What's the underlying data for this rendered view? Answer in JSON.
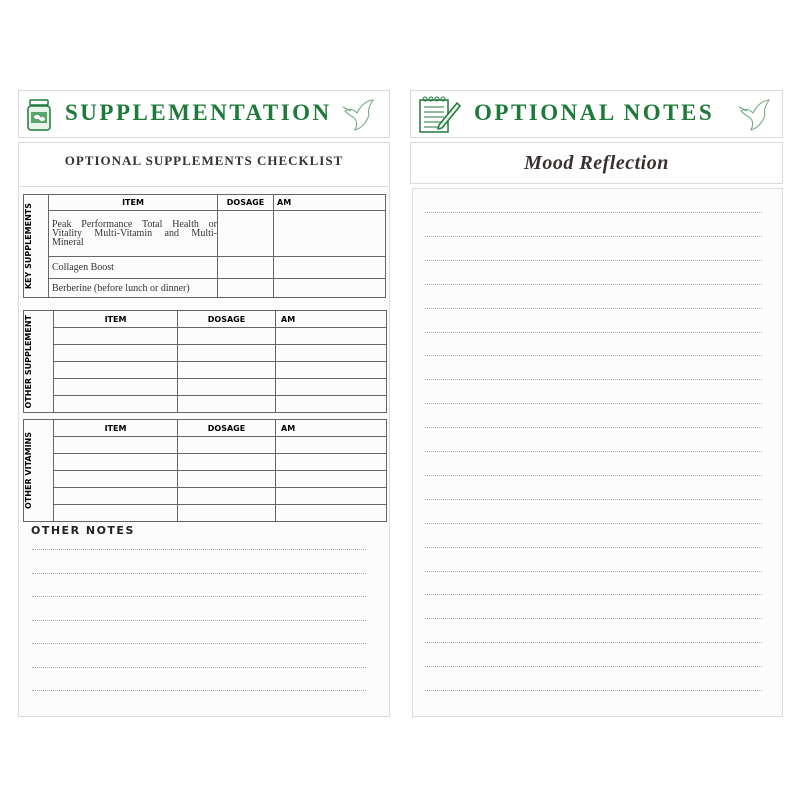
{
  "left": {
    "title": "SUPPLEMENTATION",
    "subtitle": "OPTIONAL SUPPLEMENTS CHECKLIST",
    "key_table": {
      "label": "KEY SUPPLEMENTS",
      "headers": [
        "ITEM",
        "DOSAGE",
        "AM"
      ],
      "rows": [
        "Peak Performance Total Health or Vitality Multi-Vitamin and Multi-Mineral",
        "Collagen Boost",
        "Berberine (before lunch or dinner)"
      ]
    },
    "other_supplement": {
      "label": "OTHER SUPPLEMENT",
      "headers": [
        "ITEM",
        "DOSAGE",
        "AM"
      ]
    },
    "other_vitamins": {
      "label": "OTHER VITAMINS",
      "headers": [
        "ITEM",
        "DOSAGE",
        "AM"
      ]
    },
    "notes_title": "OTHER NOTES"
  },
  "right": {
    "title": "OPTIONAL NOTES",
    "subtitle": "Mood Reflection"
  },
  "colors": {
    "accent": "#1f7a3a"
  },
  "icons": [
    "supplement-jar-icon",
    "dove-icon",
    "notepad-pencil-icon"
  ]
}
